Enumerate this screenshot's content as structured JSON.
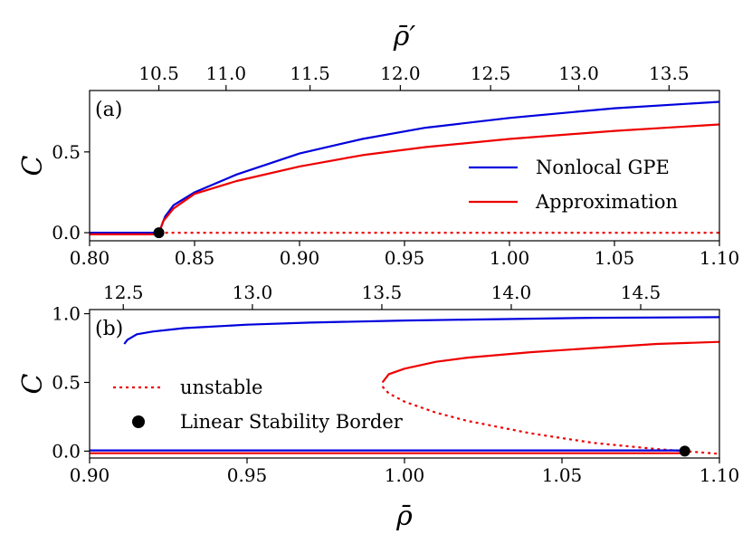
{
  "chart_data": [
    {
      "type": "line",
      "panel_label": "(a)",
      "xlim": [
        0.8,
        1.1
      ],
      "ylim": [
        -0.05,
        0.88
      ],
      "xticks": [
        0.8,
        0.85,
        0.9,
        0.95,
        1.0,
        1.05,
        1.1
      ],
      "xtick_labels": [
        "0.80",
        "0.85",
        "0.90",
        "0.95",
        "1.00",
        "1.05",
        "1.10"
      ],
      "yticks": [
        0.0,
        0.5
      ],
      "ytick_labels": [
        "0.0",
        "0.5"
      ],
      "ylabel": "C",
      "top_axis": {
        "label": "ρ̄′",
        "ticks": [
          {
            "label": "10.5",
            "x": 0.833
          },
          {
            "label": "11.0",
            "x": 0.865
          },
          {
            "label": "11.5",
            "x": 0.905
          },
          {
            "label": "12.0",
            "x": 0.948
          },
          {
            "label": "12.5",
            "x": 0.991
          },
          {
            "label": "13.0",
            "x": 1.033
          },
          {
            "label": "13.5",
            "x": 1.076
          }
        ]
      },
      "series": [
        {
          "name": "Nonlocal GPE",
          "color": "#0000dd",
          "style": "solid",
          "x": [
            0.8,
            0.833,
            0.836,
            0.84,
            0.85,
            0.87,
            0.9,
            0.93,
            0.96,
            1.0,
            1.05,
            1.1
          ],
          "y": [
            0.0,
            0.0,
            0.1,
            0.17,
            0.25,
            0.36,
            0.49,
            0.58,
            0.65,
            0.71,
            0.77,
            0.81
          ]
        },
        {
          "name": "Approximation",
          "color": "#ee0000",
          "style": "solid",
          "x": [
            0.8,
            0.833,
            0.835,
            0.84,
            0.85,
            0.87,
            0.9,
            0.93,
            0.96,
            1.0,
            1.05,
            1.1
          ],
          "y": [
            -0.01,
            -0.01,
            0.07,
            0.15,
            0.24,
            0.32,
            0.41,
            0.48,
            0.53,
            0.58,
            0.63,
            0.67
          ]
        },
        {
          "name": "",
          "color": "#ee0000",
          "style": "dotted",
          "x": [
            0.833,
            1.1
          ],
          "y": [
            0.0,
            0.0
          ]
        }
      ],
      "markers": [
        {
          "x": 0.833,
          "y": 0.0,
          "color": "#000000"
        }
      ],
      "legend": {
        "placement": "lower-right",
        "entries": [
          {
            "label": "Nonlocal GPE",
            "color": "#0000dd",
            "style": "solid"
          },
          {
            "label": "Approximation",
            "color": "#ee0000",
            "style": "solid"
          }
        ]
      }
    },
    {
      "type": "line",
      "panel_label": "(b)",
      "xlim": [
        0.9,
        1.1
      ],
      "ylim": [
        -0.05,
        1.03
      ],
      "xticks": [
        0.9,
        0.95,
        1.0,
        1.05,
        1.1
      ],
      "xtick_labels": [
        "0.90",
        "0.95",
        "1.00",
        "1.05",
        "1.10"
      ],
      "yticks": [
        0.0,
        0.5,
        1.0
      ],
      "ytick_labels": [
        "0.0",
        "0.5",
        "1.0"
      ],
      "ylabel": "C",
      "xlabel": "ρ̄",
      "top_axis": {
        "ticks": [
          {
            "label": "12.5",
            "x": 0.9107
          },
          {
            "label": "13.0",
            "x": 0.9517
          },
          {
            "label": "13.5",
            "x": 0.9928
          },
          {
            "label": "14.0",
            "x": 1.0339
          },
          {
            "label": "14.5",
            "x": 1.075
          }
        ]
      },
      "series": [
        {
          "name": "",
          "color": "#0000dd",
          "style": "solid",
          "x": [
            0.911,
            0.912,
            0.915,
            0.92,
            0.93,
            0.95,
            0.97,
            1.0,
            1.03,
            1.06,
            1.1
          ],
          "y": [
            0.78,
            0.81,
            0.85,
            0.87,
            0.895,
            0.92,
            0.935,
            0.95,
            0.96,
            0.97,
            0.975
          ]
        },
        {
          "name": "",
          "color": "#ee0000",
          "style": "solid",
          "x": [
            0.993,
            0.995,
            1.0,
            1.01,
            1.02,
            1.04,
            1.06,
            1.08,
            1.1
          ],
          "y": [
            0.5,
            0.56,
            0.6,
            0.65,
            0.68,
            0.72,
            0.75,
            0.78,
            0.795
          ]
        },
        {
          "name": "unstable",
          "color": "#ee0000",
          "style": "dotted",
          "x": [
            0.993,
            0.995,
            1.0,
            1.01,
            1.02,
            1.04,
            1.06,
            1.08,
            1.089,
            1.1
          ],
          "y": [
            0.47,
            0.42,
            0.36,
            0.28,
            0.22,
            0.13,
            0.06,
            0.015,
            0.0,
            -0.02
          ]
        },
        {
          "name": "",
          "color": "#0000dd",
          "style": "solid",
          "x": [
            0.9,
            1.089
          ],
          "y": [
            0.005,
            0.005
          ]
        },
        {
          "name": "",
          "color": "#ee0000",
          "style": "solid",
          "x": [
            0.9,
            1.089
          ],
          "y": [
            -0.015,
            -0.015
          ]
        }
      ],
      "markers": [
        {
          "x": 1.089,
          "y": 0.0,
          "color": "#000000"
        }
      ],
      "legend": {
        "placement": "lower-left",
        "entries": [
          {
            "label": "unstable",
            "color": "#ee0000",
            "style": "dotted"
          },
          {
            "label": "Linear Stability Border",
            "color": "#000000",
            "style": "marker"
          }
        ]
      }
    }
  ]
}
